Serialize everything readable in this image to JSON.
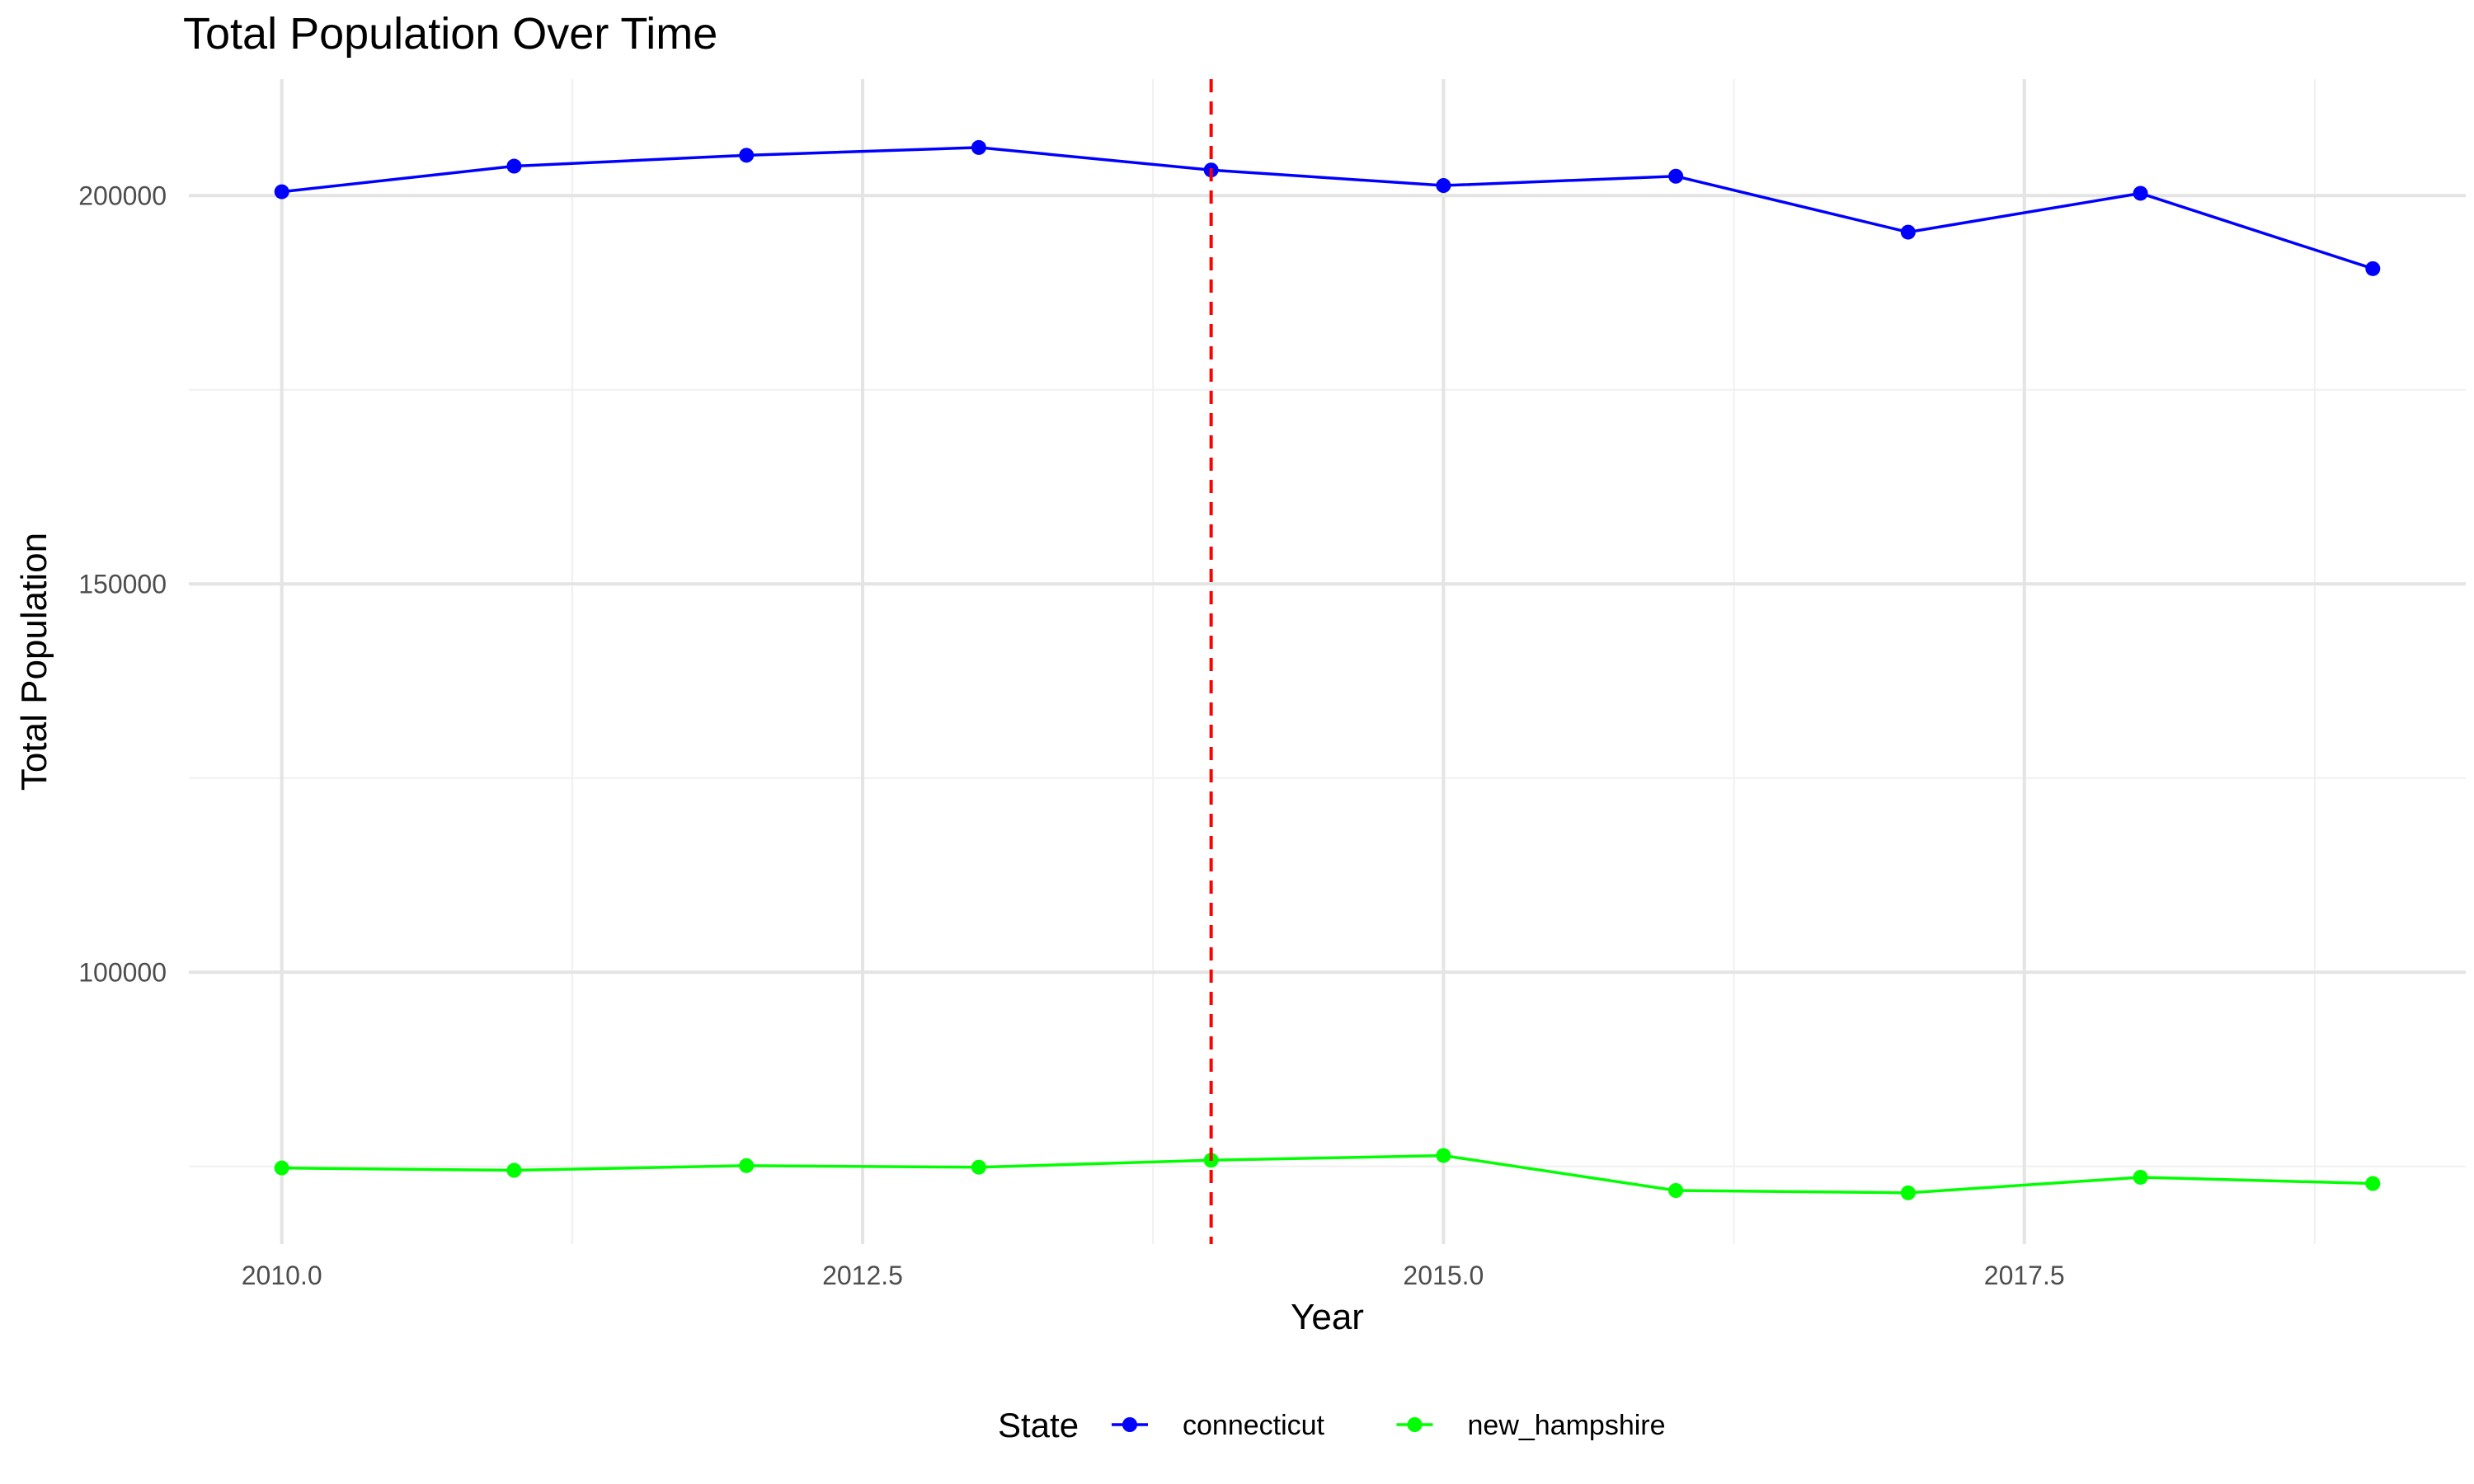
{
  "chart_data": {
    "type": "line",
    "title": "Total Population Over Time",
    "xlabel": "Year",
    "ylabel": "Total Population",
    "x": [
      2010,
      2011,
      2012,
      2013,
      2014,
      2015,
      2016,
      2017,
      2018,
      2019
    ],
    "xlim": [
      2009.6,
      2019.4
    ],
    "ylim": [
      65000,
      215000
    ],
    "x_ticks": [
      2010.0,
      2012.5,
      2015.0,
      2017.5
    ],
    "x_tick_labels": [
      "2010.0",
      "2012.5",
      "2015.0",
      "2017.5"
    ],
    "y_ticks": [
      100000,
      150000,
      200000
    ],
    "y_tick_labels": [
      "100000",
      "150000",
      "200000"
    ],
    "grid": true,
    "legend": {
      "title": "State",
      "position": "bottom"
    },
    "vline": {
      "x": 2014,
      "color": "#ff0000",
      "style": "dashed"
    },
    "series": [
      {
        "name": "connecticut",
        "color": "#0000ff",
        "values": [
          200500,
          203800,
          205200,
          206200,
          203300,
          201300,
          202500,
          195300,
          200300,
          190600
        ]
      },
      {
        "name": "new_hampshire",
        "color": "#00ff00",
        "values": [
          74800,
          74500,
          75100,
          74900,
          75800,
          76400,
          71900,
          71600,
          73600,
          72800
        ]
      }
    ]
  }
}
